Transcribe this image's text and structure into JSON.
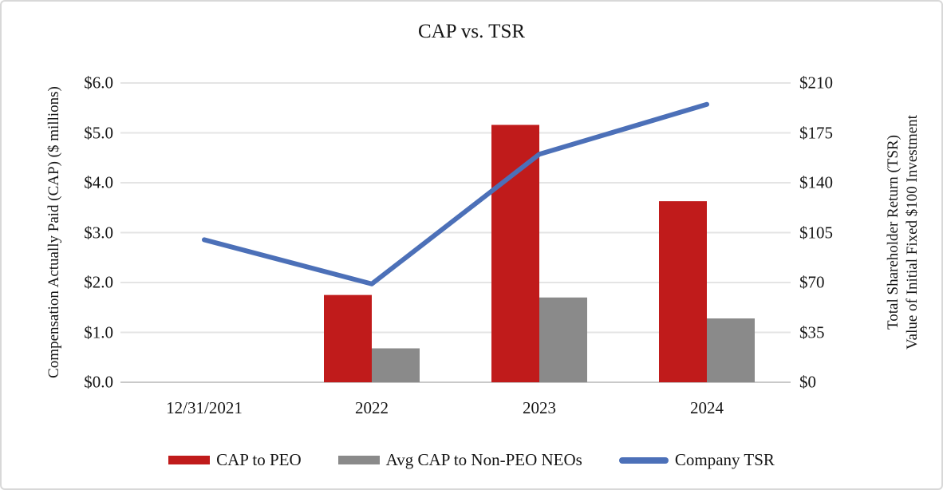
{
  "chart_data": {
    "type": "bar+line combo",
    "title": "CAP vs. TSR",
    "categories": [
      "12/31/2021",
      "2022",
      "2023",
      "2024"
    ],
    "series": [
      {
        "name": "CAP to PEO",
        "type": "bar",
        "axis": "left",
        "color": "#C01B1B",
        "values": [
          null,
          1.75,
          5.16,
          3.63
        ]
      },
      {
        "name": "Avg CAP to Non-PEO NEOs",
        "type": "bar",
        "axis": "left",
        "color": "#8A8A8A",
        "values": [
          null,
          0.68,
          1.7,
          1.28
        ]
      },
      {
        "name": "Company TSR",
        "type": "line",
        "axis": "right",
        "color": "#4C70B8",
        "values": [
          100,
          69,
          160,
          195
        ]
      }
    ],
    "left_axis": {
      "label": "Compensation Actually Paid (CAP) ($ millions)",
      "min": 0,
      "max": 6,
      "ticks": [
        "$0.0",
        "$1.0",
        "$2.0",
        "$3.0",
        "$4.0",
        "$5.0",
        "$6.0"
      ]
    },
    "right_axis": {
      "label_line1": "Total Shareholder Return (TSR)",
      "label_line2": "Value of Initial Fixed $100 Investment",
      "min": 0,
      "max": 210,
      "ticks": [
        "$0",
        "$35",
        "$70",
        "$105",
        "$140",
        "$175",
        "$210"
      ]
    },
    "grid": true,
    "legend_position": "bottom",
    "colors": {
      "gridline": "#E4E4E4",
      "axis_line": "#C9C9C9",
      "text": "#151515",
      "frame_border": "#D8D8D8"
    }
  }
}
